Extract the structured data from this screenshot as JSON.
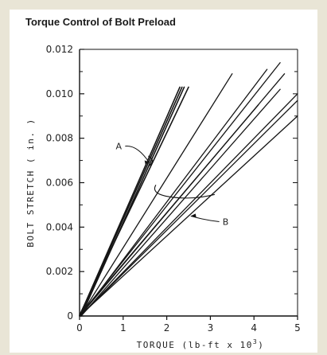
{
  "chart_data": {
    "type": "line",
    "title": "Torque Control of Bolt Preload",
    "xlabel": "TORQUE (lb-ft x 10^3)",
    "ylabel": "BOLT STRETCH  ( in. )",
    "xlim": [
      0,
      5
    ],
    "ylim": [
      0,
      0.012
    ],
    "x_ticks": [
      "0",
      "1",
      "2",
      "3",
      "4",
      "5"
    ],
    "y_ticks": [
      "0",
      "0.002",
      "0.004",
      "0.006",
      "0.008",
      "0.010",
      "0.012"
    ],
    "grid": false,
    "series": [
      {
        "group": "A",
        "x": [
          0,
          2.3
        ],
        "y": [
          0,
          0.0103
        ]
      },
      {
        "group": "A",
        "x": [
          0,
          2.35
        ],
        "y": [
          0,
          0.0103
        ]
      },
      {
        "group": "A",
        "x": [
          0,
          2.4
        ],
        "y": [
          0,
          0.0103
        ]
      },
      {
        "group": "A",
        "x": [
          0,
          2.5
        ],
        "y": [
          0,
          0.0103
        ]
      },
      {
        "group": "B",
        "x": [
          0,
          3.5
        ],
        "y": [
          0,
          0.0109
        ]
      },
      {
        "group": "B",
        "x": [
          0,
          4.3
        ],
        "y": [
          0,
          0.0111
        ]
      },
      {
        "group": "B",
        "x": [
          0,
          4.6
        ],
        "y": [
          0,
          0.0114
        ]
      },
      {
        "group": "B",
        "x": [
          0,
          4.7
        ],
        "y": [
          0,
          0.0109
        ]
      },
      {
        "group": "B",
        "x": [
          0,
          4.6
        ],
        "y": [
          0,
          0.0102
        ]
      },
      {
        "group": "B",
        "x": [
          0,
          4.1
        ],
        "y": [
          0,
          0.0095
        ]
      },
      {
        "group": "B",
        "x": [
          0,
          5.0
        ],
        "y": [
          0,
          0.01
        ]
      },
      {
        "group": "B",
        "x": [
          0,
          5.0
        ],
        "y": [
          0,
          0.0097
        ]
      },
      {
        "group": "B",
        "x": [
          0,
          5.0
        ],
        "y": [
          0,
          0.009
        ]
      }
    ],
    "annotations": [
      {
        "text": "A",
        "x": 0.9,
        "y": 0.0075,
        "arrow_to": [
          1.6,
          0.0069
        ]
      },
      {
        "text": "B",
        "x": 3.35,
        "y": 0.0041,
        "arrow_to": [
          2.55,
          0.0045
        ]
      }
    ]
  }
}
